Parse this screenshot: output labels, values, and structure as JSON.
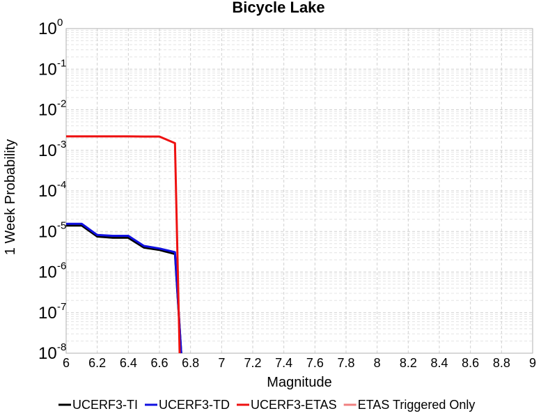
{
  "chart_data": {
    "type": "line",
    "title": "Bicycle Lake",
    "xlabel": "Magnitude",
    "ylabel": "1 Week Probability",
    "xlim": [
      6,
      9
    ],
    "ylim": [
      1e-08,
      1
    ],
    "yscale": "log",
    "grid": true,
    "legend": "bottom",
    "x_ticks": [
      "6",
      "6.2",
      "6.4",
      "6.6",
      "6.8",
      "7",
      "7.2",
      "7.4",
      "7.6",
      "7.8",
      "8",
      "8.2",
      "8.4",
      "8.6",
      "8.8",
      "9"
    ],
    "y_ticks": [
      {
        "base": "10",
        "exp": "0"
      },
      {
        "base": "10",
        "exp": "-1"
      },
      {
        "base": "10",
        "exp": "-2"
      },
      {
        "base": "10",
        "exp": "-3"
      },
      {
        "base": "10",
        "exp": "-4"
      },
      {
        "base": "10",
        "exp": "-5"
      },
      {
        "base": "10",
        "exp": "-6"
      },
      {
        "base": "10",
        "exp": "-7"
      },
      {
        "base": "10",
        "exp": "-8"
      }
    ],
    "series": [
      {
        "name": "UCERF3-TI",
        "color": "#000000",
        "x": [
          6.0,
          6.1,
          6.2,
          6.3,
          6.4,
          6.5,
          6.6,
          6.7,
          6.74
        ],
        "y": [
          1.4e-05,
          1.4e-05,
          7.5e-06,
          7e-06,
          7e-06,
          4e-06,
          3.5e-06,
          2.8e-06,
          1e-08
        ]
      },
      {
        "name": "UCERF3-TD",
        "color": "#1010e0",
        "x": [
          6.0,
          6.1,
          6.2,
          6.3,
          6.4,
          6.5,
          6.6,
          6.7,
          6.74
        ],
        "y": [
          1.55e-05,
          1.55e-05,
          8.2e-06,
          7.8e-06,
          7.8e-06,
          4.4e-06,
          3.8e-06,
          3.1e-06,
          1e-08
        ]
      },
      {
        "name": "UCERF3-ETAS",
        "color": "#ee1111",
        "x": [
          6.0,
          6.1,
          6.2,
          6.3,
          6.4,
          6.5,
          6.6,
          6.7,
          6.73
        ],
        "y": [
          0.0022,
          0.0022,
          0.0022,
          0.0022,
          0.0022,
          0.00218,
          0.00218,
          0.0015,
          1e-08
        ]
      },
      {
        "name": "ETAS Triggered Only",
        "color": "#f08080",
        "x": [],
        "y": []
      }
    ]
  }
}
